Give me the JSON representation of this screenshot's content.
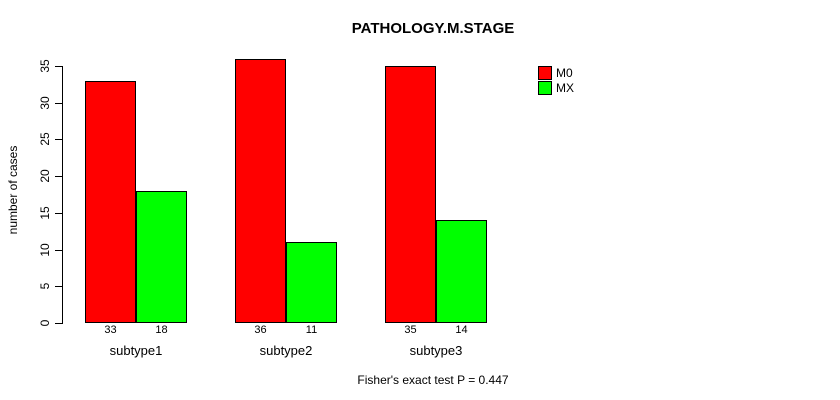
{
  "chart_data": {
    "type": "bar",
    "title": "PATHOLOGY.M.STAGE",
    "categories": [
      "subtype1",
      "subtype2",
      "subtype3"
    ],
    "series": [
      {
        "name": "M0",
        "color": "#ff0000",
        "values": [
          33,
          36,
          35
        ]
      },
      {
        "name": "MX",
        "color": "#00ff00",
        "values": [
          18,
          11,
          14
        ]
      }
    ],
    "value_labels_under_bars": [
      [
        33,
        36,
        35
      ],
      [
        18,
        11,
        14
      ]
    ],
    "xlabel": "",
    "ylabel": "number of cases",
    "ylim": [
      0,
      35
    ],
    "yticks": [
      0,
      5,
      10,
      15,
      20,
      25,
      30,
      35
    ],
    "grid": false,
    "legend_position": "top-right",
    "legend_entries": [
      "M0",
      "MX"
    ],
    "annotation": "Fisher's exact test P = 0.447",
    "bar_border_color": "#000000",
    "axis_color": "#000000",
    "background_color": "#ffffff"
  }
}
